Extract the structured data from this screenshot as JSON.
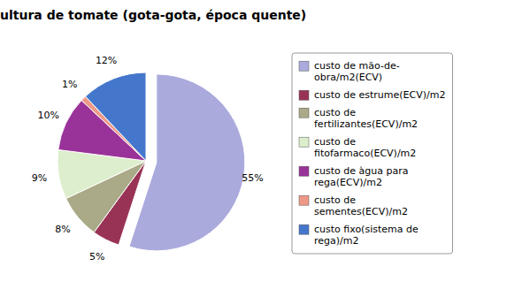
{
  "chart_data": {
    "type": "pie",
    "title": "Cultura de tomate (gota-gota, época quente)",
    "categories": [
      "custo de mão-de-\nobra/m2(ECV)",
      "custo de estrume(ECV)/m2",
      "custo de\nfertilizantes(ECV)/m2",
      "custo de\nfitofarmaco(ECV)/m2",
      "custo de àgua para\nrega(ECV)/m2",
      "custo de\nsementes(ECV)/m2",
      "custo fixo(sistema de\nrega)/m2"
    ],
    "values": [
      55,
      5,
      8,
      9,
      10,
      1,
      12
    ],
    "value_labels": [
      "55%",
      "5%",
      "8%",
      "9%",
      "10%",
      "1%",
      "12%"
    ],
    "data_labels": true,
    "colors": [
      "#aaaadd",
      "#993355",
      "#aaaa88",
      "#ddeecc",
      "#993399",
      "#ee9988",
      "#4477cc"
    ],
    "legend": "right"
  }
}
